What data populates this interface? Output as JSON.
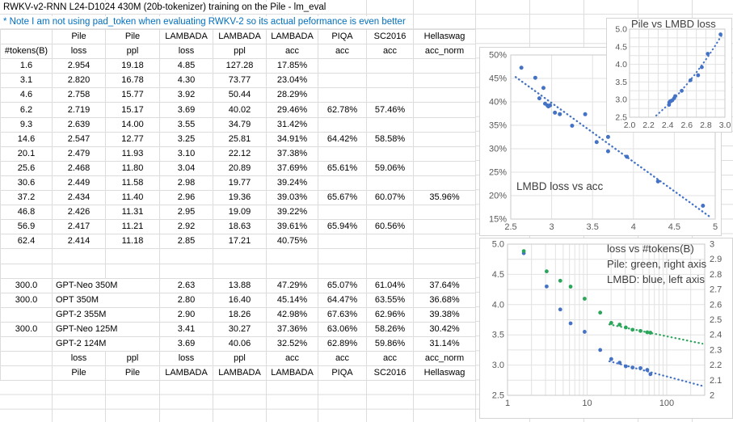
{
  "title": "RWKV-v2-RNN L24-D1024 430M (20b-tokenizer) training on the Pile - lm_eval",
  "note": "* Note I am not using pad_token when evaluating RWKV-2 so its actual peformance is even better",
  "colors": {
    "note_blue": "#0070C0",
    "gridline": "#dcdcdc",
    "marker_blue": "#4472C4",
    "marker_green": "#2aa55a",
    "chart_label_gray": "#595959"
  },
  "table": {
    "group_headers": [
      "",
      "Pile",
      "Pile",
      "LAMBADA",
      "LAMBADA",
      "LAMBADA",
      "PIQA",
      "SC2016",
      "Hellaswag"
    ],
    "col_headers": [
      "#tokens(B)",
      "loss",
      "ppl",
      "loss",
      "ppl",
      "acc",
      "acc",
      "acc",
      "acc_norm"
    ],
    "data_rows": [
      [
        "1.6",
        "2.954",
        "19.18",
        "4.85",
        "127.28",
        "17.85%",
        "",
        "",
        ""
      ],
      [
        "3.1",
        "2.820",
        "16.78",
        "4.30",
        "73.77",
        "23.04%",
        "",
        "",
        ""
      ],
      [
        "4.6",
        "2.758",
        "15.77",
        "3.92",
        "50.44",
        "28.29%",
        "",
        "",
        ""
      ],
      [
        "6.2",
        "2.719",
        "15.17",
        "3.69",
        "40.02",
        "29.46%",
        "62.78%",
        "57.46%",
        ""
      ],
      [
        "9.3",
        "2.639",
        "14.00",
        "3.55",
        "34.79",
        "31.42%",
        "",
        "",
        ""
      ],
      [
        "14.6",
        "2.547",
        "12.77",
        "3.25",
        "25.81",
        "34.91%",
        "64.42%",
        "58.58%",
        ""
      ],
      [
        "20.1",
        "2.479",
        "11.93",
        "3.10",
        "22.12",
        "37.38%",
        "",
        "",
        ""
      ],
      [
        "25.6",
        "2.468",
        "11.80",
        "3.04",
        "20.89",
        "37.69%",
        "65.61%",
        "59.06%",
        ""
      ],
      [
        "30.6",
        "2.449",
        "11.58",
        "2.98",
        "19.77",
        "39.24%",
        "",
        "",
        ""
      ],
      [
        "37.2",
        "2.434",
        "11.40",
        "2.96",
        "19.36",
        "39.03%",
        "65.67%",
        "60.07%",
        "35.96%"
      ],
      [
        "46.8",
        "2.426",
        "11.31",
        "2.95",
        "19.09",
        "39.22%",
        "",
        "",
        ""
      ],
      [
        "56.9",
        "2.417",
        "11.21",
        "2.92",
        "18.63",
        "39.61%",
        "65.94%",
        "60.56%",
        ""
      ],
      [
        "62.4",
        "2.414",
        "11.18",
        "2.85",
        "17.21",
        "40.75%",
        "",
        "",
        ""
      ]
    ],
    "model_rows": [
      [
        "300.0",
        "GPT-Neo 350M",
        "",
        "2.63",
        "13.88",
        "47.29%",
        "65.07%",
        "61.04%",
        "37.64%"
      ],
      [
        "300.0",
        "OPT 350M",
        "",
        "2.80",
        "16.40",
        "45.14%",
        "64.47%",
        "63.55%",
        "36.68%"
      ],
      [
        "",
        "GPT-2 355M",
        "",
        "2.90",
        "18.26",
        "42.98%",
        "67.63%",
        "62.96%",
        "39.38%"
      ],
      [
        "300.0",
        "GPT-Neo 125M",
        "",
        "3.41",
        "30.27",
        "37.36%",
        "63.06%",
        "58.26%",
        "30.42%"
      ],
      [
        "",
        "GPT-2 124M",
        "",
        "3.69",
        "40.06",
        "32.52%",
        "62.89%",
        "59.86%",
        "31.14%"
      ]
    ],
    "footer_rows": [
      [
        "",
        "loss",
        "ppl",
        "loss",
        "ppl",
        "acc",
        "acc",
        "acc",
        "acc_norm"
      ],
      [
        "",
        "Pile",
        "Pile",
        "LAMBADA",
        "LAMBADA",
        "LAMBADA",
        "PIQA",
        "SC2016",
        "Hellaswag"
      ]
    ]
  },
  "chart_data": [
    {
      "id": "pile-vs-lmbd-loss",
      "type": "scatter",
      "title": "Pile vs LMBD loss",
      "x_series_name": "Pile loss",
      "y_series_name": "LAMBADA loss",
      "x": [
        2.954,
        2.82,
        2.758,
        2.719,
        2.639,
        2.547,
        2.479,
        2.468,
        2.449,
        2.434,
        2.426,
        2.417,
        2.414
      ],
      "y": [
        4.85,
        4.3,
        3.92,
        3.69,
        3.55,
        3.25,
        3.1,
        3.04,
        2.98,
        2.96,
        2.95,
        2.92,
        2.85
      ],
      "xlim": [
        2.0,
        3.0
      ],
      "ylim": [
        2.5,
        5.0
      ],
      "xticks": [
        "2.0",
        "2.2",
        "2.4",
        "2.6",
        "2.8",
        "3.0"
      ],
      "yticks": [
        "2.5",
        "3.0",
        "3.5",
        "4.0",
        "4.5",
        "5.0"
      ],
      "marker_color": "#4472C4",
      "trendline": {
        "style": "dotted",
        "fit": "exponential",
        "color": "#4472C4"
      },
      "grid": true
    },
    {
      "id": "lmbd-loss-vs-acc",
      "type": "scatter",
      "title": "LMBD loss vs acc",
      "x_series_name": "LAMBADA loss",
      "y_series_name": "LAMBADA acc (%)",
      "x": [
        4.85,
        4.3,
        3.92,
        3.69,
        3.55,
        3.25,
        3.1,
        3.04,
        2.98,
        2.96,
        2.95,
        2.92,
        2.85,
        2.63,
        2.8,
        2.9,
        3.41,
        3.69
      ],
      "y_pct": [
        17.85,
        23.04,
        28.29,
        29.46,
        31.42,
        34.91,
        37.38,
        37.69,
        39.24,
        39.03,
        39.22,
        39.61,
        40.75,
        47.29,
        45.14,
        42.98,
        37.36,
        32.52
      ],
      "xlim": [
        2.5,
        5.0
      ],
      "ylim_pct": [
        15,
        50
      ],
      "xticks": [
        "2.5",
        "3",
        "3.5",
        "4",
        "4.5",
        "5"
      ],
      "yticks": [
        "15%",
        "20%",
        "25%",
        "30%",
        "35%",
        "40%",
        "45%",
        "50%"
      ],
      "marker_color": "#4472C4",
      "trendline": {
        "style": "dotted",
        "fit": "linear",
        "color": "#4472C4"
      },
      "grid": true
    },
    {
      "id": "loss-vs-tokens",
      "type": "scatter",
      "title": "loss vs #tokens(B)",
      "annotation_lines": [
        "loss vs #tokens(B)",
        "Pile: green, right axis",
        "LMBD: blue, left axis"
      ],
      "xscale": "log",
      "xlim": [
        1,
        300
      ],
      "xticks": [
        "1",
        "10",
        "100"
      ],
      "left_ylim": [
        2.5,
        5.0
      ],
      "left_yticks": [
        "5.0",
        "4.5",
        "4.0",
        "3.5",
        "3.0",
        "2.5"
      ],
      "right_ylim": [
        2.0,
        3.0
      ],
      "right_yticks": [
        "3",
        "2.9",
        "2.8",
        "2.7",
        "2.6",
        "2.5",
        "2.4",
        "2.3",
        "2.2",
        "2.1",
        "2"
      ],
      "x": [
        1.6,
        3.1,
        4.6,
        6.2,
        9.3,
        14.6,
        20.1,
        25.6,
        30.6,
        37.2,
        46.8,
        56.9,
        62.4
      ],
      "series": [
        {
          "name": "LMBD loss",
          "axis": "left",
          "color": "#4472C4",
          "values": [
            4.85,
            4.3,
            3.92,
            3.69,
            3.55,
            3.25,
            3.1,
            3.04,
            2.98,
            2.96,
            2.95,
            2.92,
            2.85
          ],
          "trendline": {
            "style": "dotted",
            "fit": "log-linear"
          }
        },
        {
          "name": "Pile loss",
          "axis": "right",
          "color": "#2aa55a",
          "values": [
            2.954,
            2.82,
            2.758,
            2.719,
            2.639,
            2.547,
            2.479,
            2.468,
            2.449,
            2.434,
            2.426,
            2.417,
            2.414
          ],
          "trendline": {
            "style": "dotted",
            "fit": "log-linear"
          }
        }
      ],
      "grid": true
    }
  ]
}
